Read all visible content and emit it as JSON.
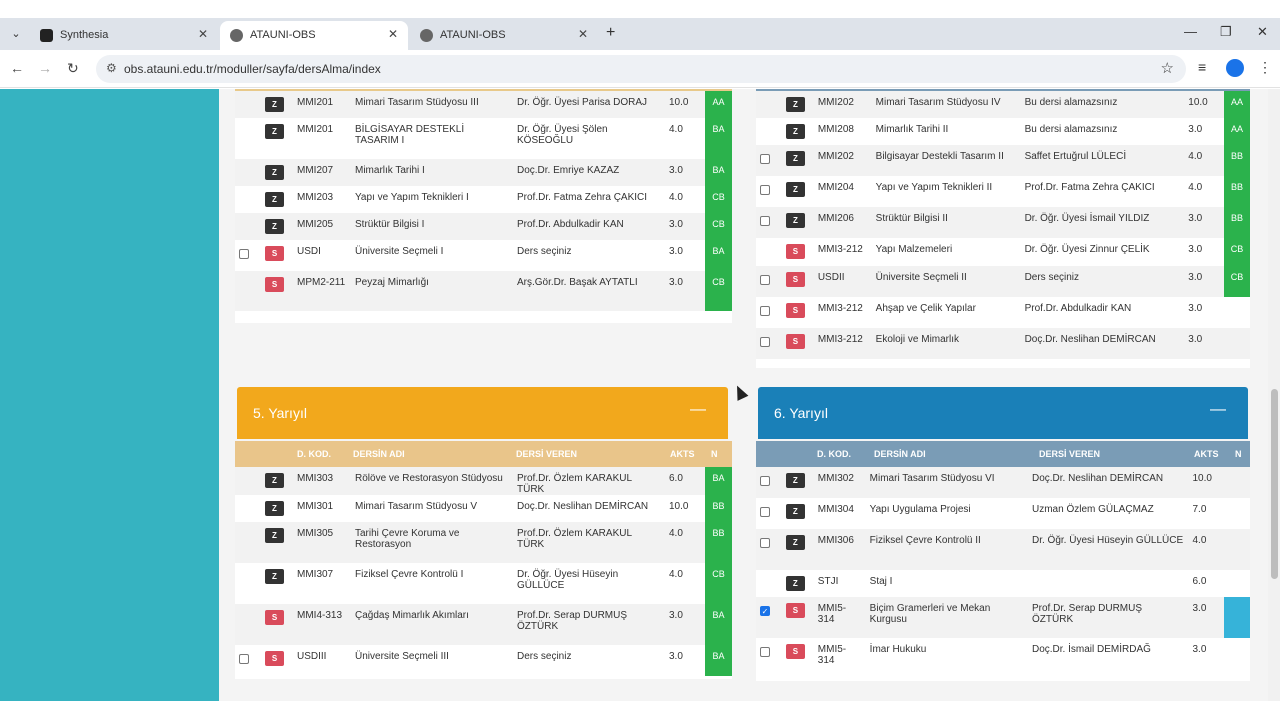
{
  "browser": {
    "tabs": [
      {
        "title": "Synthesia",
        "active": false
      },
      {
        "title": "ATAUNI-OBS",
        "active": true
      },
      {
        "title": "ATAUNI-OBS",
        "active": false
      }
    ],
    "new_tab": "+",
    "url": "obs.atauni.edu.tr/moduller/sayfa/dersAlma/index"
  },
  "semesters": [
    {
      "title": "",
      "rows": [
        {
          "check": "none",
          "type": "Z",
          "code": "MMI201",
          "name": "Mimari Tasarım Stüdyosu III",
          "teacher": "Dr. Öğr. Üyesi Parisa DORAJ",
          "akts": "10.0",
          "grade": "AA"
        },
        {
          "check": "none",
          "type": "Z",
          "code": "MMI201",
          "name": "BİLGİSAYAR DESTEKLİ TASARIM I",
          "teacher": "Dr. Öğr. Üyesi Şölen KÖSEOĞLU",
          "akts": "4.0",
          "grade": "BA"
        },
        {
          "check": "none",
          "type": "Z",
          "code": "MMI207",
          "name": "Mimarlık Tarihi I",
          "teacher": "Doç.Dr. Emriye KAZAZ",
          "akts": "3.0",
          "grade": "BA"
        },
        {
          "check": "none",
          "type": "Z",
          "code": "MMI203",
          "name": "Yapı ve Yapım Teknikleri I",
          "teacher": "Prof.Dr. Fatma Zehra ÇAKICI",
          "akts": "4.0",
          "grade": "CB"
        },
        {
          "check": "none",
          "type": "Z",
          "code": "MMI205",
          "name": "Strüktür Bilgisi I",
          "teacher": "Prof.Dr. Abdulkadir KAN",
          "akts": "3.0",
          "grade": "CB"
        },
        {
          "check": "empty",
          "type": "S",
          "code": "USDI",
          "name": "Üniversite Seçmeli I",
          "teacher": "Ders seçiniz",
          "akts": "3.0",
          "grade": "BA"
        },
        {
          "check": "none",
          "type": "S",
          "code": "MPM2-211",
          "name": "Peyzaj Mimarlığı",
          "teacher": "Arş.Gör.Dr. Başak AYTATLI",
          "akts": "3.0",
          "grade": "CB"
        }
      ]
    },
    {
      "title": "",
      "rows": [
        {
          "check": "none",
          "type": "Z",
          "code": "MMI202",
          "name": "Mimari Tasarım Stüdyosu IV",
          "teacher": "Bu dersi alamazsınız",
          "akts": "10.0",
          "grade": "AA"
        },
        {
          "check": "none",
          "type": "Z",
          "code": "MMI208",
          "name": "Mimarlık Tarihi II",
          "teacher": "Bu dersi alamazsınız",
          "akts": "3.0",
          "grade": "AA"
        },
        {
          "check": "empty",
          "type": "Z",
          "code": "MMI202",
          "name": "Bilgisayar Destekli Tasarım II",
          "teacher": "Saffet Ertuğrul LÜLECİ",
          "akts": "4.0",
          "grade": "BB"
        },
        {
          "check": "empty",
          "type": "Z",
          "code": "MMI204",
          "name": "Yapı ve Yapım Teknikleri II",
          "teacher": "Prof.Dr. Fatma Zehra ÇAKICI",
          "akts": "4.0",
          "grade": "BB"
        },
        {
          "check": "empty",
          "type": "Z",
          "code": "MMI206",
          "name": "Strüktür Bilgisi II",
          "teacher": "Dr. Öğr. Üyesi İsmail YILDIZ",
          "akts": "3.0",
          "grade": "BB"
        },
        {
          "check": "none",
          "type": "S",
          "code": "MMI3-212",
          "name": "Yapı Malzemeleri",
          "teacher": "Dr. Öğr. Üyesi Zinnur ÇELİK",
          "akts": "3.0",
          "grade": "CB"
        },
        {
          "check": "empty",
          "type": "S",
          "code": "USDII",
          "name": "Üniversite Seçmeli II",
          "teacher": "Ders seçiniz",
          "akts": "3.0",
          "grade": "CB"
        },
        {
          "check": "empty",
          "type": "S",
          "code": "MMI3-212",
          "name": "Ahşap ve Çelik Yapılar",
          "teacher": "Prof.Dr. Abdulkadir KAN",
          "akts": "3.0",
          "grade": ""
        },
        {
          "check": "empty",
          "type": "S",
          "code": "MMI3-212",
          "name": "Ekoloji ve Mimarlık",
          "teacher": "Doç.Dr. Neslihan DEMİRCAN",
          "akts": "3.0",
          "grade": ""
        }
      ]
    },
    {
      "title": "5. Yarıyıl",
      "columns": [
        "D. KOD.",
        "DERSİN ADI",
        "DERSİ VEREN",
        "AKTS",
        "N"
      ],
      "rows": [
        {
          "check": "none",
          "type": "Z",
          "code": "MMI303",
          "name": "Rölöve ve Restorasyon Stüdyosu",
          "teacher": "Prof.Dr. Özlem KARAKUL TÜRK",
          "akts": "6.0",
          "grade": "BA"
        },
        {
          "check": "none",
          "type": "Z",
          "code": "MMI301",
          "name": "Mimari Tasarım Stüdyosu V",
          "teacher": "Doç.Dr. Neslihan DEMİRCAN",
          "akts": "10.0",
          "grade": "BB"
        },
        {
          "check": "none",
          "type": "Z",
          "code": "MMI305",
          "name": "Tarihi Çevre Koruma ve Restorasyon",
          "teacher": "Prof.Dr. Özlem KARAKUL TÜRK",
          "akts": "4.0",
          "grade": "BB"
        },
        {
          "check": "none",
          "type": "Z",
          "code": "MMI307",
          "name": "Fiziksel Çevre Kontrolü I",
          "teacher": "Dr. Öğr. Üyesi Hüseyin GÜLLÜCE",
          "akts": "4.0",
          "grade": "CB"
        },
        {
          "check": "none",
          "type": "S",
          "code": "MMI4-313",
          "name": "Çağdaş Mimarlık Akımları",
          "teacher": "Prof.Dr. Serap DURMUŞ ÖZTÜRK",
          "akts": "3.0",
          "grade": "BA"
        },
        {
          "check": "empty",
          "type": "S",
          "code": "USDIII",
          "name": "Üniversite Seçmeli III",
          "teacher": "Ders seçiniz",
          "akts": "3.0",
          "grade": "BA"
        }
      ]
    },
    {
      "title": "6. Yarıyıl",
      "columns": [
        "D. KOD.",
        "DERSİN ADI",
        "DERSİ VEREN",
        "AKTS",
        "N"
      ],
      "rows": [
        {
          "check": "empty",
          "type": "Z",
          "code": "MMI302",
          "name": "Mimari Tasarım Stüdyosu VI",
          "teacher": "Doç.Dr. Neslihan DEMİRCAN",
          "akts": "10.0",
          "grade": ""
        },
        {
          "check": "empty",
          "type": "Z",
          "code": "MMI304",
          "name": "Yapı Uygulama Projesi",
          "teacher": "Uzman Özlem GÜLAÇMAZ",
          "akts": "7.0",
          "grade": ""
        },
        {
          "check": "empty",
          "type": "Z",
          "code": "MMI306",
          "name": "Fiziksel Çevre Kontrolü II",
          "teacher": "Dr. Öğr. Üyesi Hüseyin GÜLLÜCE",
          "akts": "4.0",
          "grade": ""
        },
        {
          "check": "none",
          "type": "Z",
          "code": "STJI",
          "name": "Staj I",
          "teacher": "",
          "akts": "6.0",
          "grade": ""
        },
        {
          "check": "checked",
          "type": "S",
          "code": "MMI5-314",
          "name": "Biçim Gramerleri ve Mekan Kurgusu",
          "teacher": "Prof.Dr. Serap DURMUŞ ÖZTÜRK",
          "akts": "3.0",
          "grade": "selected"
        },
        {
          "check": "empty",
          "type": "S",
          "code": "MMI5-314",
          "name": "İmar Hukuku",
          "teacher": "Doç.Dr. İsmail DEMİRDAĞ",
          "akts": "3.0",
          "grade": ""
        }
      ]
    }
  ],
  "colors": {
    "sidebar": "#36b3c1",
    "sem5": "#f2a81c",
    "sem6": "#1a80b8",
    "grade": "#2bb24c"
  }
}
